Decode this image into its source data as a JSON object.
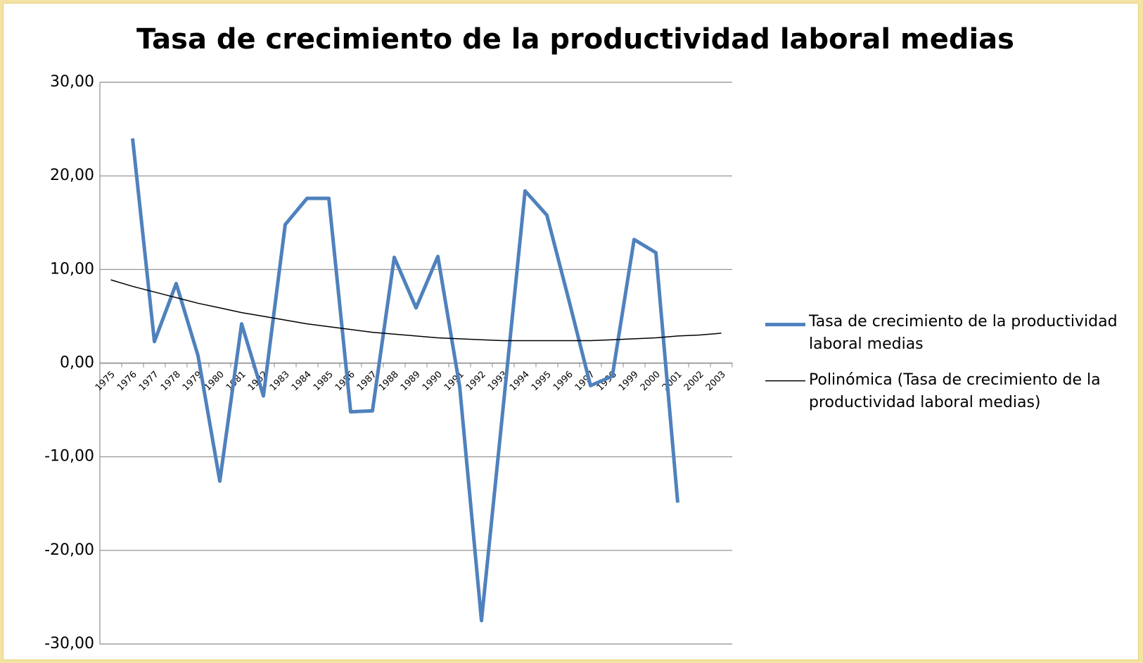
{
  "chart_data": {
    "type": "line",
    "title": "Tasa de crecimiento de la productividad laboral medias",
    "categories": [
      "1975",
      "1976",
      "1977",
      "1978",
      "1979",
      "1980",
      "1981",
      "1982",
      "1983",
      "1984",
      "1985",
      "1986",
      "1987",
      "1988",
      "1989",
      "1990",
      "1991",
      "1992",
      "1993",
      "1994",
      "1995",
      "1996",
      "1997",
      "1998",
      "1999",
      "2000",
      "2001",
      "2002",
      "2003"
    ],
    "series": [
      {
        "name": "Tasa de crecimiento de la productividad laboral medias",
        "color": "#4f81bd",
        "values": [
          null,
          24.0,
          2.3,
          8.5,
          0.8,
          -12.6,
          4.2,
          -3.5,
          14.8,
          17.6,
          17.6,
          -5.2,
          -5.1,
          11.3,
          5.9,
          11.4,
          -2.5,
          -27.5,
          -4.6,
          18.4,
          15.8,
          6.8,
          -2.4,
          -1.4,
          13.2,
          11.8,
          -14.9,
          null,
          null
        ]
      },
      {
        "name": "Polinómica (Tasa de crecimiento de la productividad laboral medias)",
        "color": "#000000",
        "values": [
          8.9,
          8.2,
          7.6,
          7.0,
          6.4,
          5.9,
          5.4,
          5.0,
          4.6,
          4.2,
          3.9,
          3.6,
          3.3,
          3.1,
          2.9,
          2.7,
          2.6,
          2.5,
          2.4,
          2.4,
          2.4,
          2.4,
          2.4,
          2.5,
          2.6,
          2.7,
          2.9,
          3.0,
          3.2
        ]
      }
    ],
    "ylim": [
      -30,
      30
    ],
    "yticks": [
      {
        "value": -30,
        "label": "-30,00"
      },
      {
        "value": -20,
        "label": "-20,00"
      },
      {
        "value": -10,
        "label": "-10,00"
      },
      {
        "value": 0,
        "label": "0,00"
      },
      {
        "value": 10,
        "label": "10,00"
      },
      {
        "value": 20,
        "label": "20,00"
      },
      {
        "value": 30,
        "label": "30,00"
      }
    ],
    "grid": true,
    "legend": "right"
  }
}
